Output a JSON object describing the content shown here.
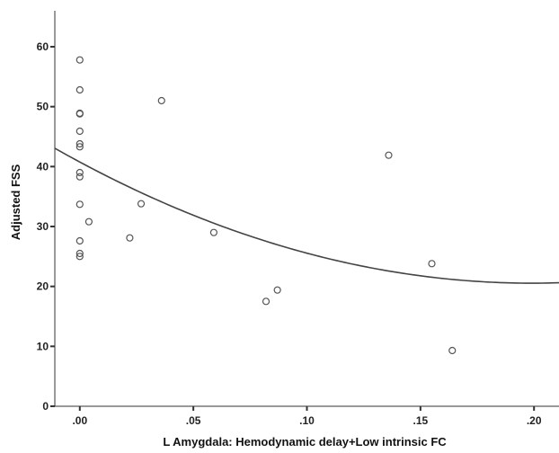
{
  "chart_data": {
    "type": "scatter",
    "title": "",
    "xlabel": "L Amygdala: Hemodynamic delay+Low intrinsic FC",
    "ylabel": "Adjusted FSS",
    "xlim": [
      -0.011,
      0.211
    ],
    "ylim": [
      0,
      66
    ],
    "x_ticks": [
      0.0,
      0.05,
      0.1,
      0.15,
      0.2
    ],
    "x_tick_labels": [
      ".00",
      ".05",
      ".10",
      ".15",
      ".20"
    ],
    "y_ticks": [
      0,
      10,
      20,
      30,
      40,
      50,
      60
    ],
    "y_tick_labels": [
      "0",
      "10",
      "20",
      "30",
      "40",
      "50",
      "60"
    ],
    "grid": false,
    "legend": "none",
    "points": [
      {
        "x": 0.0,
        "y": 57.8
      },
      {
        "x": 0.0,
        "y": 52.8
      },
      {
        "x": 0.0,
        "y": 48.9
      },
      {
        "x": 0.0,
        "y": 48.8
      },
      {
        "x": 0.0,
        "y": 45.9
      },
      {
        "x": 0.0,
        "y": 43.8
      },
      {
        "x": 0.0,
        "y": 43.3
      },
      {
        "x": 0.0,
        "y": 39.0
      },
      {
        "x": 0.0,
        "y": 38.3
      },
      {
        "x": 0.0,
        "y": 33.7
      },
      {
        "x": 0.0,
        "y": 27.6
      },
      {
        "x": 0.0,
        "y": 25.5
      },
      {
        "x": 0.0,
        "y": 25.0
      },
      {
        "x": 0.004,
        "y": 30.8
      },
      {
        "x": 0.022,
        "y": 28.1
      },
      {
        "x": 0.027,
        "y": 33.8
      },
      {
        "x": 0.036,
        "y": 51.0
      },
      {
        "x": 0.059,
        "y": 29.0
      },
      {
        "x": 0.082,
        "y": 17.5
      },
      {
        "x": 0.087,
        "y": 19.4
      },
      {
        "x": 0.136,
        "y": 41.9
      },
      {
        "x": 0.155,
        "y": 23.8
      },
      {
        "x": 0.164,
        "y": 9.3
      }
    ],
    "fit_curve": {
      "type": "quadratic",
      "coefficients": [
        40.76,
        -203.1,
        510.0
      ]
    },
    "marker_color": "#555555",
    "line_color": "#444444"
  }
}
